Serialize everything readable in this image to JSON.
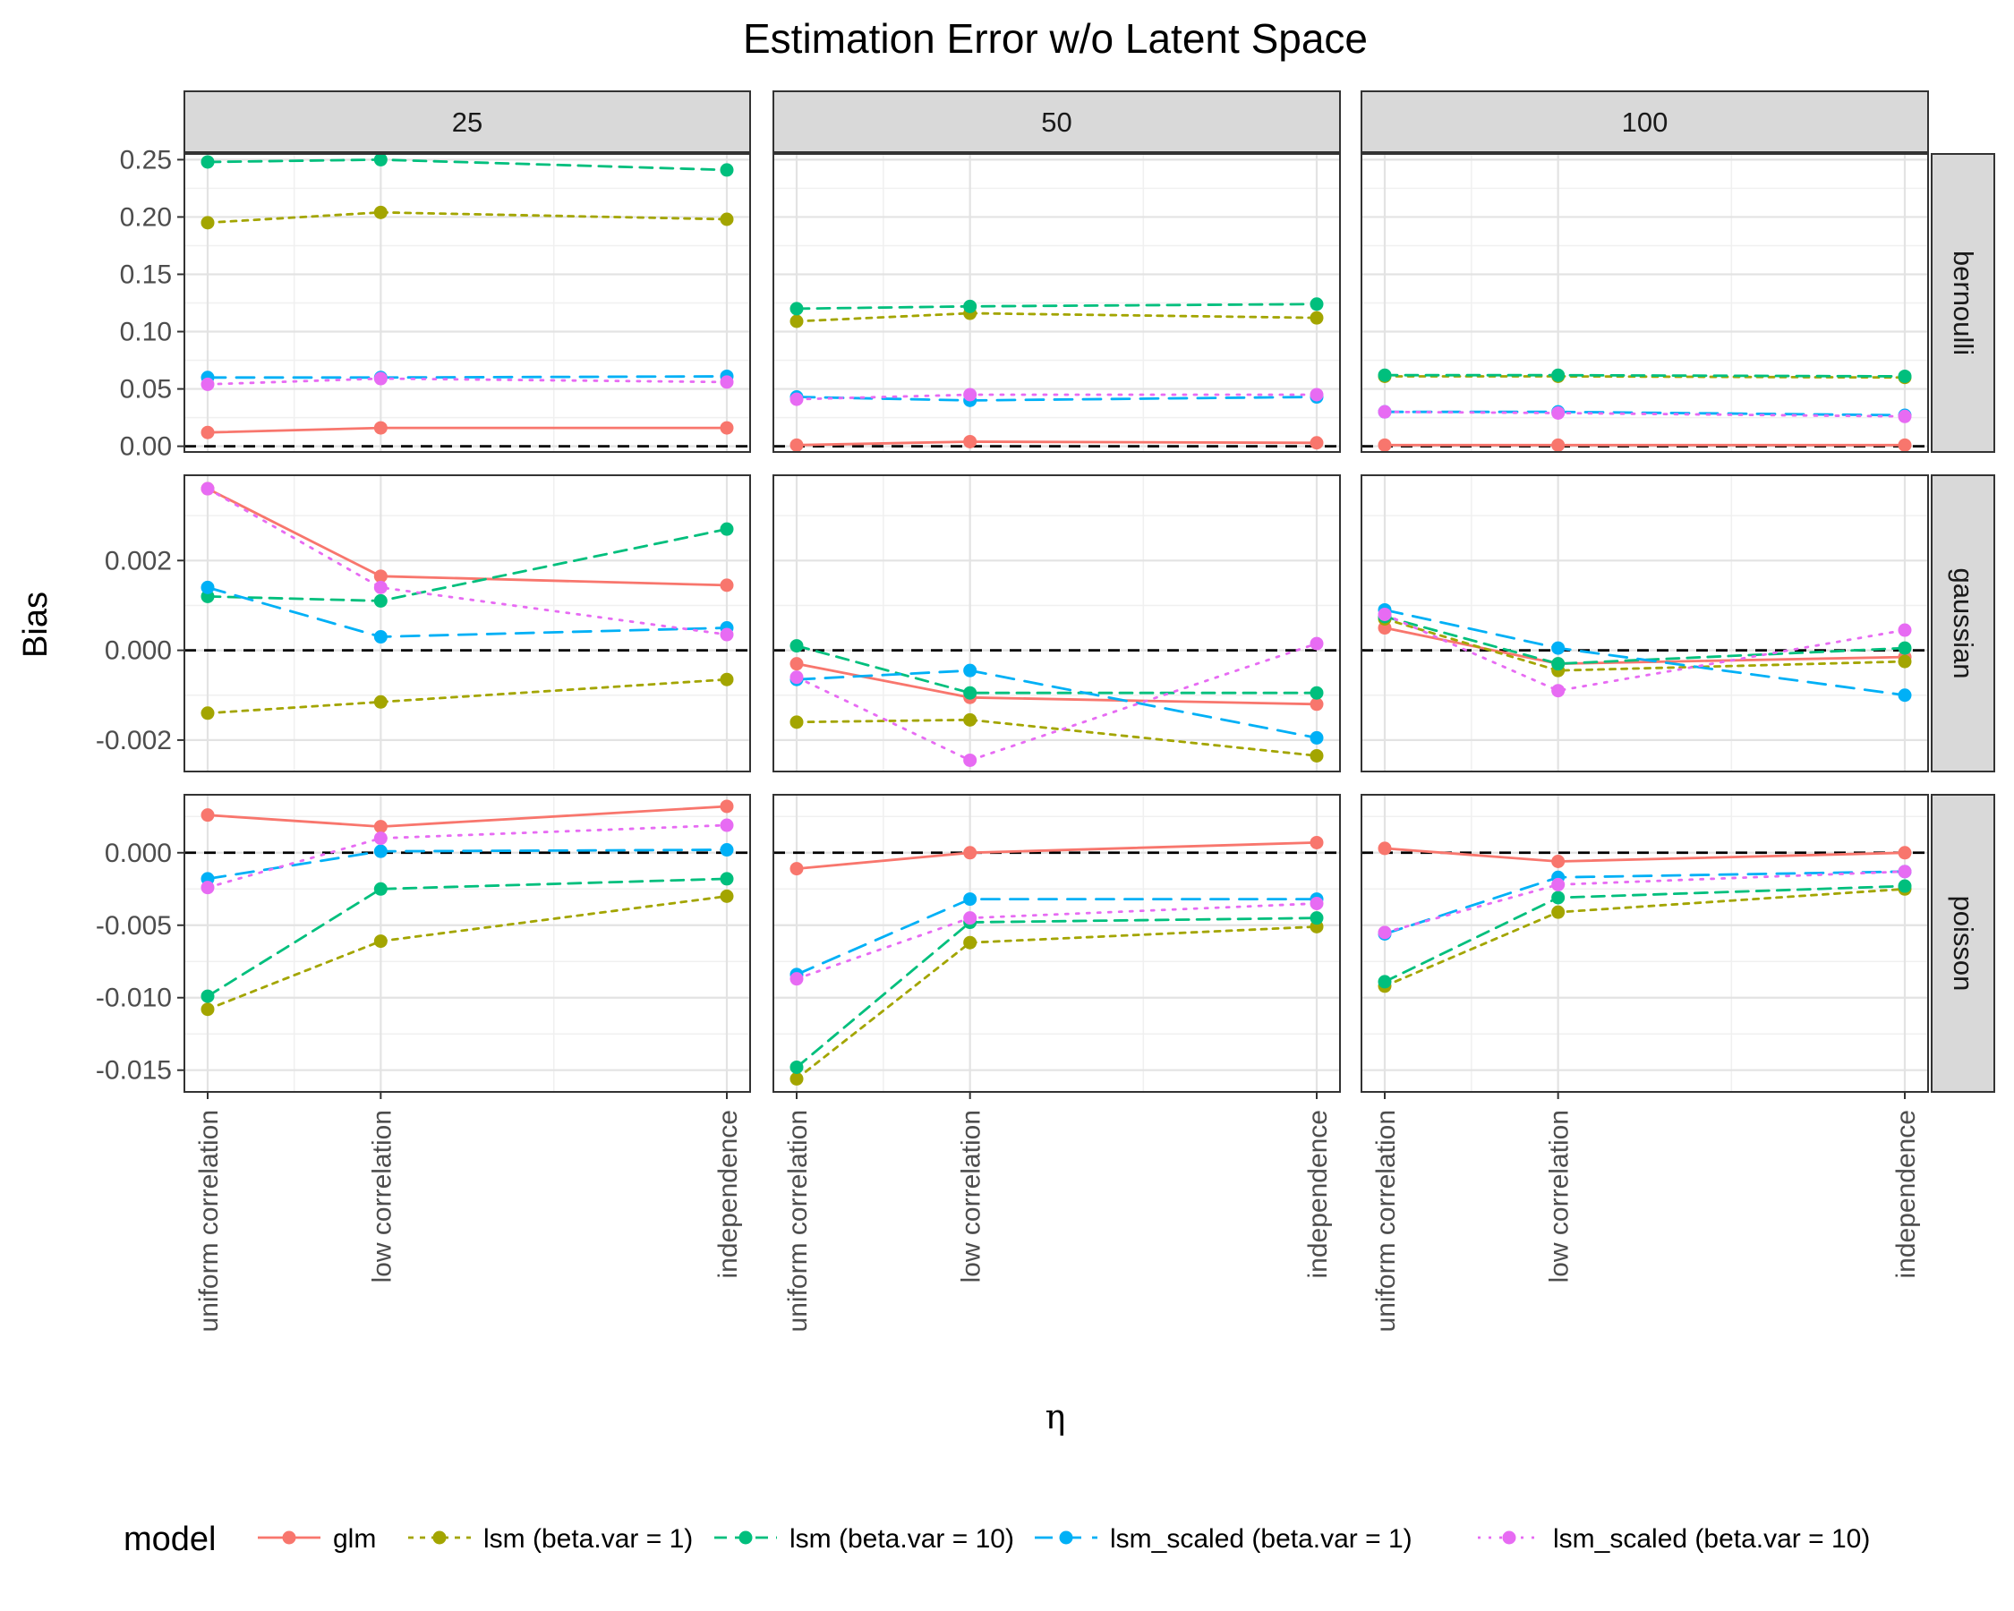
{
  "chart_data": {
    "type": "line",
    "title": "Estimation Error w/o Latent Space",
    "xlabel": "η",
    "ylabel": "Bias",
    "categories": [
      "uniform correlation",
      "low correlation",
      "independence"
    ],
    "x_positions": [
      0,
      1,
      3
    ],
    "columns": [
      "25",
      "50",
      "100"
    ],
    "rows": [
      "bernoulli",
      "gaussian",
      "poisson"
    ],
    "row_ylim": {
      "bernoulli": [
        -0.005,
        0.255
      ],
      "gaussian": [
        -0.0027,
        0.0039
      ],
      "poisson": [
        -0.0165,
        0.004
      ]
    },
    "row_yticks": {
      "bernoulli": [
        0.0,
        0.05,
        0.1,
        0.15,
        0.2,
        0.25
      ],
      "gaussian": [
        -0.002,
        0.0,
        0.002
      ],
      "poisson": [
        -0.015,
        -0.01,
        -0.005,
        0.0
      ]
    },
    "row_ytick_labels": {
      "bernoulli": [
        "0.00",
        "0.05",
        "0.10",
        "0.15",
        "0.20",
        "0.25"
      ],
      "gaussian": [
        "-0.002",
        "0.000",
        "0.002"
      ],
      "poisson": [
        "-0.015",
        "-0.010",
        "-0.005",
        "0.000"
      ]
    },
    "reference_line": 0,
    "grid": true,
    "legend_title": "model",
    "legend_position": "bottom",
    "series_styles": [
      {
        "name": "glm",
        "color": "#F8766D",
        "dash": "solid"
      },
      {
        "name": "lsm (beta.var = 1)",
        "color": "#A3A500",
        "dash": "dotted"
      },
      {
        "name": "lsm (beta.var = 10)",
        "color": "#00BF7D",
        "dash": "dashed"
      },
      {
        "name": "lsm_scaled (beta.var = 1)",
        "color": "#00B0F6",
        "dash": "longdash"
      },
      {
        "name": "lsm_scaled (beta.var = 10)",
        "color": "#E76BF3",
        "dash": "dotted-fine"
      }
    ],
    "panels": [
      {
        "row": "bernoulli",
        "col": "25",
        "series": [
          {
            "name": "glm",
            "values": [
              0.012,
              0.016,
              0.016
            ]
          },
          {
            "name": "lsm (beta.var = 1)",
            "values": [
              0.195,
              0.204,
              0.198
            ]
          },
          {
            "name": "lsm (beta.var = 10)",
            "values": [
              0.248,
              0.25,
              0.241
            ]
          },
          {
            "name": "lsm_scaled (beta.var = 1)",
            "values": [
              0.06,
              0.06,
              0.061
            ]
          },
          {
            "name": "lsm_scaled (beta.var = 10)",
            "values": [
              0.054,
              0.059,
              0.056
            ]
          }
        ]
      },
      {
        "row": "bernoulli",
        "col": "50",
        "series": [
          {
            "name": "glm",
            "values": [
              0.001,
              0.004,
              0.003
            ]
          },
          {
            "name": "lsm (beta.var = 1)",
            "values": [
              0.109,
              0.116,
              0.112
            ]
          },
          {
            "name": "lsm (beta.var = 10)",
            "values": [
              0.12,
              0.122,
              0.124
            ]
          },
          {
            "name": "lsm_scaled (beta.var = 1)",
            "values": [
              0.043,
              0.04,
              0.043
            ]
          },
          {
            "name": "lsm_scaled (beta.var = 10)",
            "values": [
              0.041,
              0.045,
              0.045
            ]
          }
        ]
      },
      {
        "row": "bernoulli",
        "col": "100",
        "series": [
          {
            "name": "glm",
            "values": [
              0.001,
              0.001,
              0.001
            ]
          },
          {
            "name": "lsm (beta.var = 1)",
            "values": [
              0.061,
              0.061,
              0.06
            ]
          },
          {
            "name": "lsm (beta.var = 10)",
            "values": [
              0.062,
              0.062,
              0.061
            ]
          },
          {
            "name": "lsm_scaled (beta.var = 1)",
            "values": [
              0.03,
              0.03,
              0.027
            ]
          },
          {
            "name": "lsm_scaled (beta.var = 10)",
            "values": [
              0.03,
              0.029,
              0.026
            ]
          }
        ]
      },
      {
        "row": "gaussian",
        "col": "25",
        "series": [
          {
            "name": "glm",
            "values": [
              0.0036,
              0.00165,
              0.00145
            ]
          },
          {
            "name": "lsm (beta.var = 1)",
            "values": [
              -0.0014,
              -0.00115,
              -0.00065
            ]
          },
          {
            "name": "lsm (beta.var = 10)",
            "values": [
              0.0012,
              0.0011,
              0.0027
            ]
          },
          {
            "name": "lsm_scaled (beta.var = 1)",
            "values": [
              0.0014,
              0.0003,
              0.0005
            ]
          },
          {
            "name": "lsm_scaled (beta.var = 10)",
            "values": [
              0.0036,
              0.0014,
              0.00035
            ]
          }
        ]
      },
      {
        "row": "gaussian",
        "col": "50",
        "series": [
          {
            "name": "glm",
            "values": [
              -0.0003,
              -0.00105,
              -0.0012
            ]
          },
          {
            "name": "lsm (beta.var = 1)",
            "values": [
              -0.0016,
              -0.00155,
              -0.00235
            ]
          },
          {
            "name": "lsm (beta.var = 10)",
            "values": [
              0.0001,
              -0.00095,
              -0.00095
            ]
          },
          {
            "name": "lsm_scaled (beta.var = 1)",
            "values": [
              -0.00065,
              -0.00045,
              -0.00195
            ]
          },
          {
            "name": "lsm_scaled (beta.var = 10)",
            "values": [
              -0.0006,
              -0.00245,
              0.00015
            ]
          }
        ]
      },
      {
        "row": "gaussian",
        "col": "100",
        "series": [
          {
            "name": "glm",
            "values": [
              0.0005,
              -0.0003,
              -0.00015
            ]
          },
          {
            "name": "lsm (beta.var = 1)",
            "values": [
              0.0007,
              -0.00045,
              -0.00025
            ]
          },
          {
            "name": "lsm (beta.var = 10)",
            "values": [
              0.00075,
              -0.0003,
              5e-05
            ]
          },
          {
            "name": "lsm_scaled (beta.var = 1)",
            "values": [
              0.0009,
              5e-05,
              -0.001
            ]
          },
          {
            "name": "lsm_scaled (beta.var = 10)",
            "values": [
              0.0008,
              -0.0009,
              0.00045
            ]
          }
        ]
      },
      {
        "row": "poisson",
        "col": "25",
        "series": [
          {
            "name": "glm",
            "values": [
              0.0026,
              0.0018,
              0.0032
            ]
          },
          {
            "name": "lsm (beta.var = 1)",
            "values": [
              -0.0108,
              -0.0061,
              -0.003
            ]
          },
          {
            "name": "lsm (beta.var = 10)",
            "values": [
              -0.0099,
              -0.0025,
              -0.0018
            ]
          },
          {
            "name": "lsm_scaled (beta.var = 1)",
            "values": [
              -0.0018,
              0.0001,
              0.0002
            ]
          },
          {
            "name": "lsm_scaled (beta.var = 10)",
            "values": [
              -0.0024,
              0.001,
              0.0019
            ]
          }
        ]
      },
      {
        "row": "poisson",
        "col": "50",
        "series": [
          {
            "name": "glm",
            "values": [
              -0.0011,
              0.0,
              0.0007
            ]
          },
          {
            "name": "lsm (beta.var = 1)",
            "values": [
              -0.0156,
              -0.0062,
              -0.0051
            ]
          },
          {
            "name": "lsm (beta.var = 10)",
            "values": [
              -0.0148,
              -0.0048,
              -0.0045
            ]
          },
          {
            "name": "lsm_scaled (beta.var = 1)",
            "values": [
              -0.0084,
              -0.0032,
              -0.0032
            ]
          },
          {
            "name": "lsm_scaled (beta.var = 10)",
            "values": [
              -0.0087,
              -0.0045,
              -0.0035
            ]
          }
        ]
      },
      {
        "row": "poisson",
        "col": "100",
        "series": [
          {
            "name": "glm",
            "values": [
              0.0003,
              -0.0006,
              0.0
            ]
          },
          {
            "name": "lsm (beta.var = 1)",
            "values": [
              -0.0092,
              -0.0041,
              -0.0025
            ]
          },
          {
            "name": "lsm (beta.var = 10)",
            "values": [
              -0.0089,
              -0.0031,
              -0.0023
            ]
          },
          {
            "name": "lsm_scaled (beta.var = 1)",
            "values": [
              -0.0056,
              -0.0017,
              -0.0013
            ]
          },
          {
            "name": "lsm_scaled (beta.var = 10)",
            "values": [
              -0.0055,
              -0.0022,
              -0.0013
            ]
          }
        ]
      }
    ]
  }
}
